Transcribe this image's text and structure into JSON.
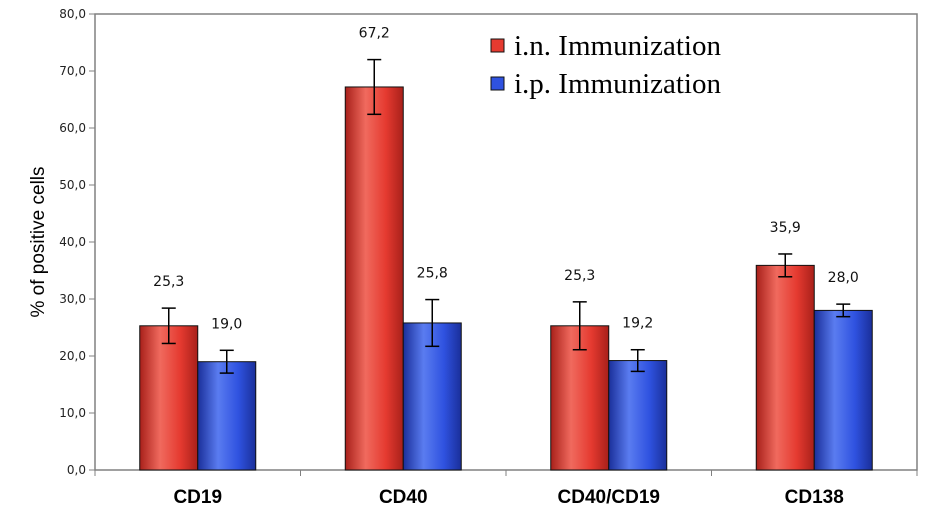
{
  "chart_data": {
    "type": "bar",
    "categories": [
      "CD19",
      "CD40",
      "CD40/CD19",
      "CD138"
    ],
    "series": [
      {
        "name": "i.n. Immunization",
        "values": [
          25.3,
          67.2,
          25.3,
          35.9
        ],
        "labels": [
          "25,3",
          "67,2",
          "25,3",
          "35,9"
        ],
        "errors": [
          3.1,
          4.8,
          4.2,
          2.0
        ],
        "color": "#e53a30",
        "color_dark": "#a8201a",
        "color_light": "#f06a5e"
      },
      {
        "name": "i.p. Immunization",
        "values": [
          19.0,
          25.8,
          19.2,
          28.0
        ],
        "labels": [
          "19,0",
          "25,8",
          "19,2",
          "28,0"
        ],
        "errors": [
          2.0,
          4.1,
          1.9,
          1.1
        ],
        "color": "#2f52e0",
        "color_dark": "#1a2f9a",
        "color_light": "#5a7cf0"
      }
    ],
    "ylabel": "% of positive cells",
    "xlabel": "",
    "ylim": [
      0,
      80
    ],
    "yticks": [
      0,
      10,
      20,
      30,
      40,
      50,
      60,
      70,
      80
    ],
    "ytick_labels": [
      "0,0",
      "10,0",
      "20,0",
      "30,0",
      "40,0",
      "50,0",
      "60,0",
      "70,0",
      "80,0"
    ],
    "grid": false,
    "legend_position": "top-right",
    "error_bars": true
  }
}
